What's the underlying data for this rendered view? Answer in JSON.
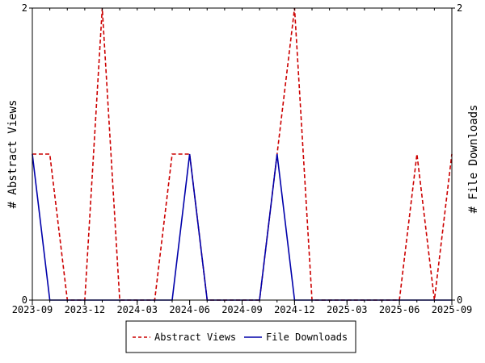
{
  "chart_data": {
    "type": "line",
    "xlabel": "",
    "ylabel_left": "# Abstract Views",
    "ylabel_right": "# File Downloads",
    "x_range": [
      "2023-09",
      "2025-09"
    ],
    "y_range": [
      0,
      2
    ],
    "y_ticks": [
      0,
      2
    ],
    "x_tick_labels": [
      "2023-09",
      "2023-12",
      "2024-03",
      "2024-06",
      "2024-09",
      "2024-12",
      "2025-03",
      "2025-06",
      "2025-09"
    ],
    "x": [
      "2023-09",
      "2023-10",
      "2023-11",
      "2023-12",
      "2024-01",
      "2024-02",
      "2024-03",
      "2024-04",
      "2024-05",
      "2024-06",
      "2024-07",
      "2024-08",
      "2024-09",
      "2024-10",
      "2024-11",
      "2024-12",
      "2025-01",
      "2025-02",
      "2025-03",
      "2025-04",
      "2025-05",
      "2025-06",
      "2025-07",
      "2025-08",
      "2025-09"
    ],
    "series": [
      {
        "name": "Abstract Views",
        "axis": "left",
        "color": "#cc0000",
        "style": "dashed",
        "values": [
          1,
          1,
          0,
          0,
          2,
          0,
          0,
          0,
          1,
          1,
          0,
          0,
          0,
          0,
          1,
          2,
          0,
          0,
          0,
          0,
          0,
          0,
          1,
          0,
          1
        ]
      },
      {
        "name": "File Downloads",
        "axis": "right",
        "color": "#0000aa",
        "style": "solid",
        "values": [
          1,
          0,
          0,
          0,
          0,
          0,
          0,
          0,
          0,
          1,
          0,
          0,
          0,
          0,
          1,
          0,
          0,
          0,
          0,
          0,
          0,
          0,
          0,
          0,
          0
        ]
      }
    ],
    "grid": false,
    "legend_position": "bottom"
  }
}
